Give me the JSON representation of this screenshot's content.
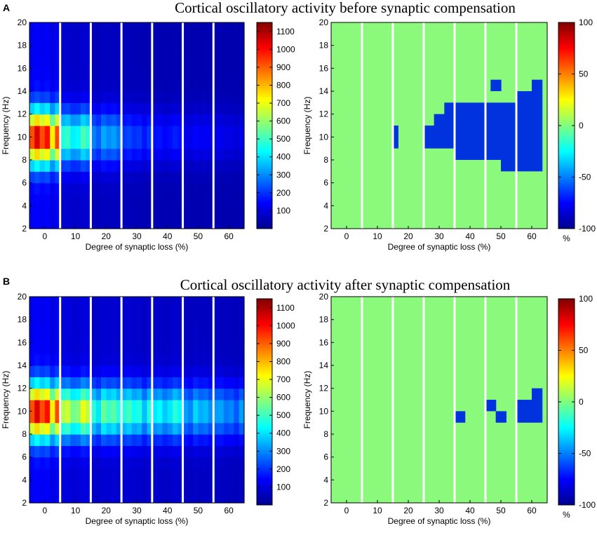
{
  "chart_data": [
    {
      "id": "A",
      "panel_letter": "A",
      "type": "heatmap",
      "title": "Cortical oscillatory activity before synaptic compensation",
      "charts": [
        {
          "kind": "power",
          "xlabel": "Degree of synaptic loss (%)",
          "ylabel": "Frequency (Hz)",
          "x_ticks": [
            "0",
            "10",
            "20",
            "30",
            "40",
            "50",
            "60"
          ],
          "y_ticks": [
            "2",
            "4",
            "6",
            "8",
            "10",
            "12",
            "14",
            "16",
            "18",
            "20"
          ],
          "ylim": [
            2,
            20
          ],
          "colorbar": {
            "range": [
              0,
              1150
            ],
            "ticks": [
              "100",
              "200",
              "300",
              "400",
              "500",
              "600",
              "700",
              "800",
              "900",
              "1000",
              "1100"
            ],
            "unit": ""
          },
          "groups": [
            {
              "label": "0",
              "peak": 1150,
              "columns": 6
            },
            {
              "label": "10",
              "peak": 560,
              "columns": 6
            },
            {
              "label": "20",
              "peak": 330,
              "columns": 6
            },
            {
              "label": "30",
              "peak": 200,
              "columns": 6
            },
            {
              "label": "40",
              "peak": 150,
              "columns": 6
            },
            {
              "label": "50",
              "peak": 110,
              "columns": 6
            },
            {
              "label": "60",
              "peak": 90,
              "columns": 6
            }
          ]
        },
        {
          "kind": "change",
          "xlabel": "Degree of synaptic loss (%)",
          "ylabel": "Frequency (Hz)",
          "x_ticks": [
            "0",
            "10",
            "20",
            "30",
            "40",
            "50",
            "60"
          ],
          "y_ticks": [
            "2",
            "4",
            "6",
            "8",
            "10",
            "12",
            "14",
            "16",
            "18",
            "20"
          ],
          "ylim": [
            2,
            20
          ],
          "colorbar": {
            "range": [
              -100,
              100
            ],
            "ticks": [
              "100",
              "50",
              "0",
              "-50",
              "-100"
            ],
            "unit": "%"
          },
          "columns_per_group": 6,
          "cells": [
            {
              "group": 2,
              "col": 0,
              "y0": 9,
              "y1": 11
            },
            {
              "group": 3,
              "col": 0,
              "y0": 9,
              "y1": 11
            },
            {
              "group": 3,
              "col": 1,
              "y0": 9,
              "y1": 11
            },
            {
              "group": 3,
              "col": 2,
              "y0": 9,
              "y1": 12
            },
            {
              "group": 3,
              "col": 3,
              "y0": 9,
              "y1": 12
            },
            {
              "group": 3,
              "col": 4,
              "y0": 9,
              "y1": 13
            },
            {
              "group": 3,
              "col": 5,
              "y0": 9,
              "y1": 13
            },
            {
              "group": 4,
              "col": 0,
              "y0": 8,
              "y1": 13
            },
            {
              "group": 4,
              "col": 1,
              "y0": 8,
              "y1": 13
            },
            {
              "group": 4,
              "col": 2,
              "y0": 8,
              "y1": 13
            },
            {
              "group": 4,
              "col": 3,
              "y0": 8,
              "y1": 13
            },
            {
              "group": 4,
              "col": 4,
              "y0": 8,
              "y1": 13
            },
            {
              "group": 4,
              "col": 5,
              "y0": 8,
              "y1": 13
            },
            {
              "group": 5,
              "col": 0,
              "y0": 8,
              "y1": 13
            },
            {
              "group": 5,
              "col": 1,
              "y0": 8,
              "y1": 13
            },
            {
              "group": 5,
              "col": 1,
              "y0": 14,
              "y1": 15
            },
            {
              "group": 5,
              "col": 2,
              "y0": 8,
              "y1": 13
            },
            {
              "group": 5,
              "col": 2,
              "y0": 14,
              "y1": 15
            },
            {
              "group": 5,
              "col": 3,
              "y0": 7,
              "y1": 13
            },
            {
              "group": 5,
              "col": 4,
              "y0": 7,
              "y1": 13
            },
            {
              "group": 5,
              "col": 5,
              "y0": 7,
              "y1": 13
            },
            {
              "group": 6,
              "col": 0,
              "y0": 7,
              "y1": 14
            },
            {
              "group": 6,
              "col": 1,
              "y0": 7,
              "y1": 14
            },
            {
              "group": 6,
              "col": 2,
              "y0": 7,
              "y1": 14
            },
            {
              "group": 6,
              "col": 3,
              "y0": 7,
              "y1": 15
            },
            {
              "group": 6,
              "col": 4,
              "y0": 7,
              "y1": 15
            }
          ]
        }
      ]
    },
    {
      "id": "B",
      "panel_letter": "B",
      "type": "heatmap",
      "title": "Cortical oscillatory activity after synaptic compensation",
      "charts": [
        {
          "kind": "power",
          "xlabel": "Degree of synaptic loss (%)",
          "ylabel": "Frequency (Hz)",
          "x_ticks": [
            "0",
            "10",
            "20",
            "30",
            "40",
            "50",
            "60"
          ],
          "y_ticks": [
            "2",
            "4",
            "6",
            "8",
            "10",
            "12",
            "14",
            "16",
            "18",
            "20"
          ],
          "ylim": [
            2,
            20
          ],
          "colorbar": {
            "range": [
              0,
              1150
            ],
            "ticks": [
              "100",
              "200",
              "300",
              "400",
              "500",
              "600",
              "700",
              "800",
              "900",
              "1000",
              "1100"
            ],
            "unit": ""
          },
          "groups": [
            {
              "label": "0",
              "peak": 1150,
              "columns": 6
            },
            {
              "label": "10",
              "peak": 780,
              "columns": 6
            },
            {
              "label": "20",
              "peak": 580,
              "columns": 6
            },
            {
              "label": "30",
              "peak": 530,
              "columns": 6
            },
            {
              "label": "40",
              "peak": 500,
              "columns": 6
            },
            {
              "label": "50",
              "peak": 380,
              "columns": 6
            },
            {
              "label": "60",
              "peak": 330,
              "columns": 6
            }
          ]
        },
        {
          "kind": "change",
          "xlabel": "Degree of synaptic loss (%)",
          "ylabel": "Frequency (Hz)",
          "x_ticks": [
            "0",
            "10",
            "20",
            "30",
            "40",
            "50",
            "60"
          ],
          "y_ticks": [
            "2",
            "4",
            "6",
            "8",
            "10",
            "12",
            "14",
            "16",
            "18",
            "20"
          ],
          "ylim": [
            2,
            20
          ],
          "colorbar": {
            "range": [
              -100,
              100
            ],
            "ticks": [
              "100",
              "50",
              "0",
              "-50",
              "-100"
            ],
            "unit": "%"
          },
          "columns_per_group": 6,
          "cells": [
            {
              "group": 4,
              "col": 0,
              "y0": 9,
              "y1": 10
            },
            {
              "group": 4,
              "col": 1,
              "y0": 9,
              "y1": 10
            },
            {
              "group": 5,
              "col": 0,
              "y0": 10,
              "y1": 11
            },
            {
              "group": 5,
              "col": 1,
              "y0": 10,
              "y1": 11
            },
            {
              "group": 5,
              "col": 2,
              "y0": 9,
              "y1": 10
            },
            {
              "group": 5,
              "col": 3,
              "y0": 9,
              "y1": 10
            },
            {
              "group": 6,
              "col": 0,
              "y0": 9,
              "y1": 11
            },
            {
              "group": 6,
              "col": 1,
              "y0": 9,
              "y1": 11
            },
            {
              "group": 6,
              "col": 2,
              "y0": 9,
              "y1": 11
            },
            {
              "group": 6,
              "col": 3,
              "y0": 9,
              "y1": 12
            },
            {
              "group": 6,
              "col": 4,
              "y0": 9,
              "y1": 12
            }
          ]
        }
      ]
    }
  ],
  "colors": {
    "neutral_green": "#8bf97b",
    "decrease_blue": "#0033dd",
    "decrease_blue_dark": "#0022bb",
    "separator": "#ffffff"
  }
}
